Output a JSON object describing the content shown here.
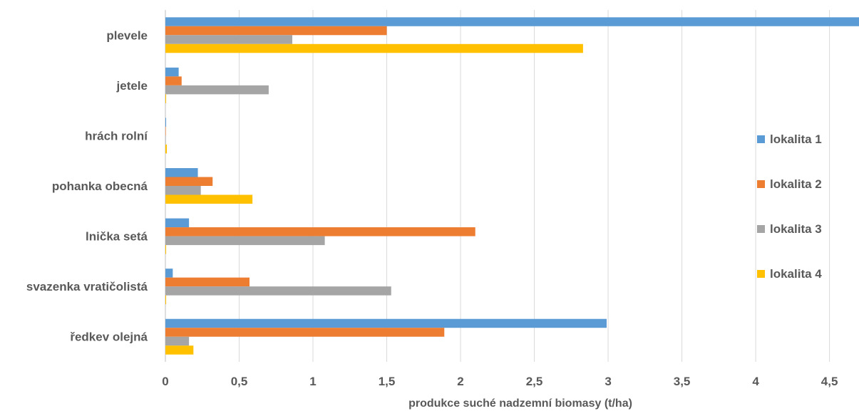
{
  "chart_data": {
    "type": "bar",
    "orientation": "horizontal",
    "categories": [
      "plevele",
      "jetele",
      "hrách rolní",
      "pohanka obecná",
      "lnička setá",
      "svazenka vratičolistá",
      "ředkev olejná"
    ],
    "tick_labels": [
      "0",
      "0,5",
      "1",
      "1,5",
      "2",
      "2,5",
      "3",
      "3,5",
      "4",
      "4,5"
    ],
    "xlabel": "produkce suché nadzemní biomasy (t/ha)",
    "ylabel": "",
    "title": "",
    "xlim": [
      0,
      4.7
    ],
    "grid": true,
    "legend_position": "right",
    "series": [
      {
        "name": "lokalita 1",
        "color": "#5B9BD5",
        "values": [
          4.9,
          0.09,
          0.005,
          0.22,
          0.16,
          0.05,
          2.99
        ]
      },
      {
        "name": "lokalita 2",
        "color": "#ED7D31",
        "values": [
          1.5,
          0.11,
          0.003,
          0.32,
          2.1,
          0.57,
          1.89
        ]
      },
      {
        "name": "lokalita 3",
        "color": "#A5A5A5",
        "values": [
          0.86,
          0.7,
          0.003,
          0.24,
          1.08,
          1.53,
          0.16
        ]
      },
      {
        "name": "lokalita 4",
        "color": "#FFC000",
        "values": [
          2.83,
          0.005,
          0.01,
          0.59,
          0.005,
          0.005,
          0.19
        ]
      }
    ]
  }
}
